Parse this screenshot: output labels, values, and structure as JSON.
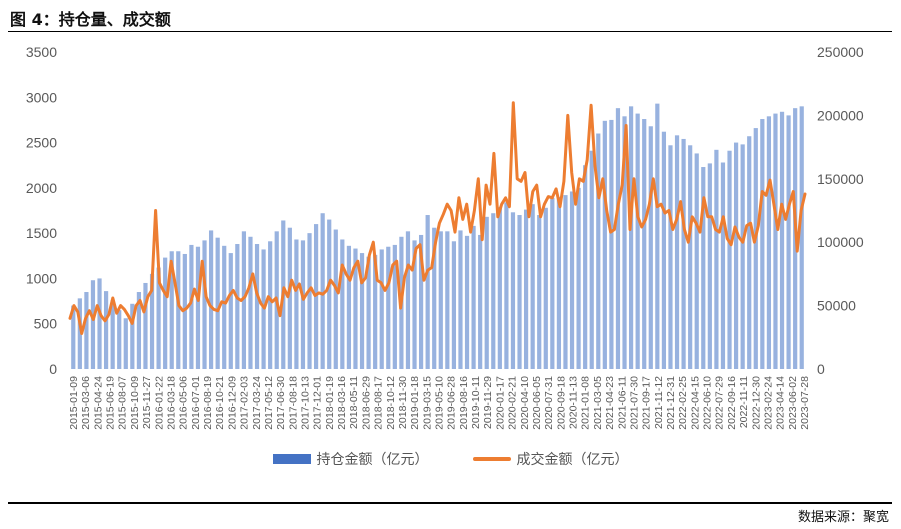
{
  "figure": {
    "title": "图 4：持仓量、成交额",
    "source": "数据来源：聚宽"
  },
  "chart_data": {
    "type": "bar",
    "colors": {
      "bars": "#4472c4",
      "line": "#ed7d31",
      "axis_text": "#595959"
    },
    "left_axis": {
      "ylim": [
        0,
        3500
      ],
      "ticks": [
        "0",
        "500",
        "1000",
        "1500",
        "2000",
        "2500",
        "3000",
        "3500"
      ]
    },
    "right_axis": {
      "ylim": [
        0,
        250000
      ],
      "ticks": [
        "0",
        "50000",
        "100000",
        "150000",
        "200000",
        "250000"
      ]
    },
    "x_tick_labels": [
      "2015-01-09",
      "2015-03-06",
      "2015-04-24",
      "2015-06-19",
      "2015-08-07",
      "2015-10-09",
      "2015-11-27",
      "2016-01-22",
      "2016-03-18",
      "2016-05-06",
      "2016-07-01",
      "2016-08-19",
      "2016-10-21",
      "2016-12-09",
      "2017-02-03",
      "2017-03-24",
      "2017-05-12",
      "2017-06-30",
      "2017-08-18",
      "2017-10-13",
      "2017-12-01",
      "2018-01-19",
      "2018-03-16",
      "2018-05-11",
      "2018-06-29",
      "2018-08-17",
      "2018-10-12",
      "2018-11-30",
      "2019-01-18",
      "2019-03-15",
      "2019-05-10",
      "2019-06-28",
      "2019-08-16",
      "2019-10-11",
      "2019-11-29",
      "2020-01-17",
      "2020-02-21",
      "2020-04-10",
      "2020-06-05",
      "2020-07-31",
      "2020-09-18",
      "2020-11-13",
      "2021-01-08",
      "2021-03-05",
      "2021-04-23",
      "2021-06-11",
      "2021-07-30",
      "2021-09-17",
      "2021-11-12",
      "2021-12-31",
      "2022-02-25",
      "2022-04-15",
      "2022-06-10",
      "2022-07-29",
      "2022-09-16",
      "2022-11-11",
      "2022-12-30",
      "2023-02-24",
      "2023-04-14",
      "2023-06-02",
      "2023-07-28"
    ],
    "series": [
      {
        "name": "持仓金额（亿元）",
        "axis": "left",
        "type": "bar",
        "values": [
          700,
          780,
          850,
          980,
          1000,
          860,
          760,
          650,
          560,
          720,
          850,
          950,
          1050,
          1120,
          1230,
          1300,
          1300,
          1270,
          1370,
          1350,
          1420,
          1530,
          1450,
          1360,
          1280,
          1380,
          1520,
          1460,
          1380,
          1320,
          1410,
          1520,
          1640,
          1560,
          1430,
          1420,
          1500,
          1600,
          1720,
          1650,
          1540,
          1430,
          1360,
          1330,
          1280,
          1240,
          1260,
          1320,
          1350,
          1370,
          1460,
          1520,
          1420,
          1480,
          1700,
          1560,
          1520,
          1520,
          1410,
          1530,
          1470,
          1580,
          1480,
          1680,
          1720,
          1790,
          1840,
          1730,
          1700,
          1760,
          1820,
          1700,
          1780,
          1890,
          1900,
          1920,
          1960,
          2000,
          2250,
          2410,
          2600,
          2740,
          2750,
          2880,
          2790,
          2900,
          2820,
          2760,
          2680,
          2930,
          2620,
          2470,
          2580,
          2540,
          2470,
          2380,
          2230,
          2270,
          2420,
          2280,
          2410,
          2500,
          2480,
          2570,
          2660,
          2760,
          2790,
          2820,
          2840,
          2800,
          2880,
          2900
        ]
      },
      {
        "name": "成交金额（亿元）",
        "axis": "right",
        "type": "line",
        "values": [
          40000,
          50000,
          45000,
          28000,
          40000,
          46000,
          39000,
          50000,
          42000,
          38000,
          43000,
          56000,
          44000,
          50000,
          47000,
          42000,
          36000,
          50000,
          54000,
          45000,
          57000,
          62000,
          125000,
          68000,
          62000,
          57000,
          85000,
          68000,
          50000,
          46000,
          48000,
          52000,
          63000,
          54000,
          85000,
          57000,
          50000,
          47000,
          46000,
          53000,
          52000,
          58000,
          62000,
          56000,
          54000,
          57000,
          64000,
          75000,
          60000,
          52000,
          48000,
          57000,
          53000,
          56000,
          42000,
          64000,
          57000,
          70000,
          62000,
          67000,
          55000,
          60000,
          64000,
          58000,
          60000,
          59000,
          62000,
          70000,
          66000,
          60000,
          82000,
          75000,
          70000,
          80000,
          85000,
          68000,
          72000,
          90000,
          100000,
          70000,
          68000,
          62000,
          68000,
          82000,
          85000,
          48000,
          72000,
          82000,
          78000,
          95000,
          98000,
          70000,
          78000,
          80000,
          100000,
          115000,
          122000,
          130000,
          125000,
          108000,
          135000,
          118000,
          130000,
          108000,
          125000,
          150000,
          102000,
          145000,
          130000,
          170000,
          120000,
          130000,
          135000,
          128000,
          210000,
          150000,
          148000,
          155000,
          120000,
          140000,
          145000,
          120000,
          130000,
          136000,
          135000,
          142000,
          128000,
          148000,
          200000,
          155000,
          130000,
          150000,
          148000,
          165000,
          208000,
          160000,
          135000,
          150000,
          125000,
          108000,
          110000,
          130000,
          145000,
          192000,
          110000,
          150000,
          120000,
          112000,
          118000,
          130000,
          150000,
          128000,
          130000,
          123000,
          125000,
          110000,
          118000,
          132000,
          110000,
          100000,
          120000,
          115000,
          108000,
          135000,
          120000,
          120000,
          110000,
          108000,
          120000,
          103000,
          98000,
          112000,
          104000,
          100000,
          113000,
          115000,
          100000,
          113000,
          140000,
          137000,
          149000,
          130000,
          110000,
          130000,
          118000,
          130000,
          140000,
          93000,
          125000,
          138000
        ]
      }
    ],
    "legend": {
      "position": "bottom",
      "entries": [
        "持仓金额（亿元）",
        "成交金额（亿元）"
      ]
    },
    "grid": false
  }
}
